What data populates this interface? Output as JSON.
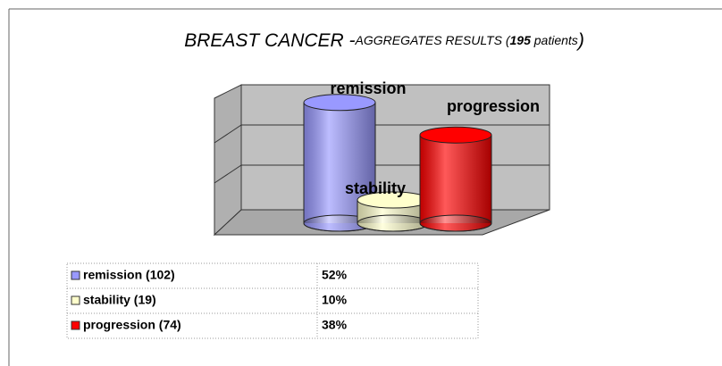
{
  "chart_data": {
    "type": "bar",
    "title": [
      "BREAST CANCER -",
      "AGGREGATES RESULTS (",
      "195",
      " patients",
      ")"
    ],
    "categories": [
      "remission",
      "stability",
      "progression"
    ],
    "values": [
      52,
      10,
      38
    ],
    "value_labels": [
      "52%",
      "10%",
      "38%"
    ],
    "legend_labels": [
      "remission (102)",
      "stability (19)",
      "progression (74)"
    ],
    "colors": [
      "#9999ff",
      "#ffffcc",
      "#ff0000"
    ],
    "grid": true
  }
}
